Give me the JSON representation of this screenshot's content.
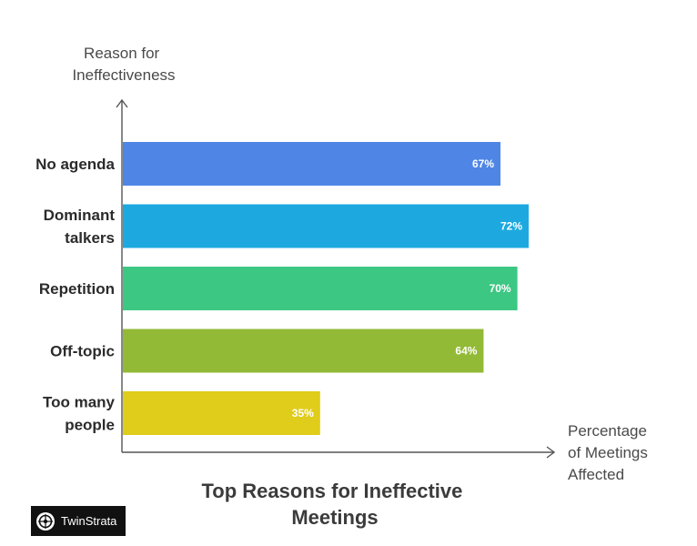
{
  "chart_data": {
    "type": "bar",
    "orientation": "horizontal",
    "title_lines": [
      "Top Reasons for Ineffective",
      "Meetings"
    ],
    "ylabel_lines": [
      "Reason for",
      "Ineffectiveness"
    ],
    "xlabel_lines": [
      "Percentage",
      "of Meetings",
      "Affected"
    ],
    "xlim": [
      0,
      80
    ],
    "value_suffix": "%",
    "categories": [
      {
        "lines": [
          "No agenda"
        ],
        "value": 67,
        "color": "#4F86E6"
      },
      {
        "lines": [
          "Dominant",
          "talkers"
        ],
        "value": 72,
        "color": "#1DA9DF"
      },
      {
        "lines": [
          "Repetition"
        ],
        "value": 70,
        "color": "#3CC783"
      },
      {
        "lines": [
          "Off-topic"
        ],
        "value": 64,
        "color": "#93BA37"
      },
      {
        "lines": [
          "Too many",
          "people"
        ],
        "value": 35,
        "color": "#E0CC1A"
      }
    ]
  },
  "brand": {
    "name": "TwinStrata"
  }
}
